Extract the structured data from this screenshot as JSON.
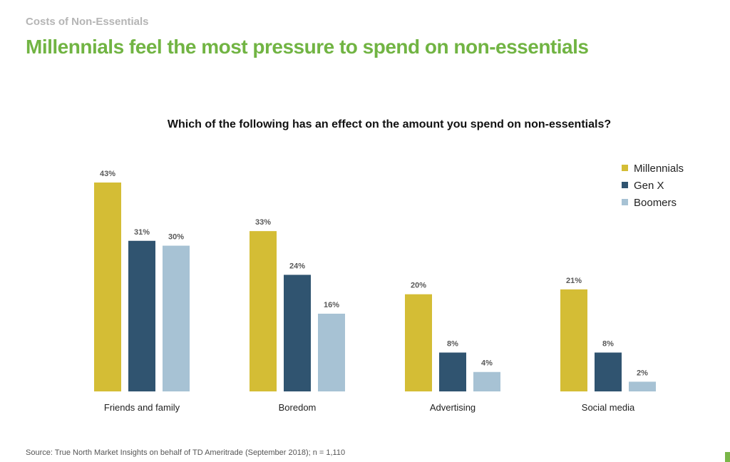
{
  "page": {
    "kicker": "Costs of Non-Essentials",
    "headline": "Millennials feel the most pressure to spend on non-essentials",
    "source": "Source: True North Market Insights on behalf of TD Ameritrade (September 2018); n = 1,110"
  },
  "colors": {
    "headline": "#71b443",
    "kicker": "#b5b5b5",
    "millennials": "#d4bd35",
    "genx": "#305470",
    "boomers": "#a7c2d4",
    "data_label": "#595959"
  },
  "chart_data": {
    "type": "bar",
    "title": "Which of the following has an effect on the amount you spend on non-essentials?",
    "xlabel": "",
    "ylabel": "",
    "categories": [
      "Friends and family",
      "Boredom",
      "Advertising",
      "Social media"
    ],
    "series": [
      {
        "name": "Millennials",
        "values": [
          43,
          33,
          20,
          21
        ],
        "color": "#d4bd35"
      },
      {
        "name": "Gen X",
        "values": [
          31,
          24,
          8,
          8
        ],
        "color": "#305470"
      },
      {
        "name": "Boomers",
        "values": [
          30,
          16,
          4,
          2
        ],
        "color": "#a7c2d4"
      }
    ],
    "value_suffix": "%",
    "ylim": [
      0,
      43
    ],
    "grid": false,
    "legend": "top-right"
  }
}
